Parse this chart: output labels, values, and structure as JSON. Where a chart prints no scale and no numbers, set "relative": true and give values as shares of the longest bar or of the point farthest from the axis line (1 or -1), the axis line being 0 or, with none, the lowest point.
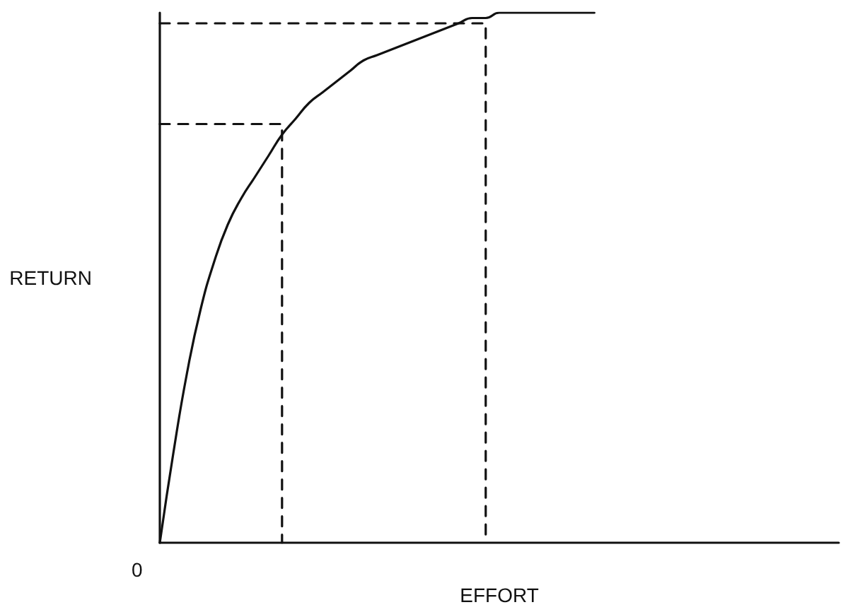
{
  "chart_data": {
    "type": "line",
    "relative": true,
    "xlabel": "EFFORT",
    "ylabel": "RETURN",
    "annotations": [
      "0"
    ],
    "marker": "none",
    "categories": [
      null,
      null,
      null,
      null,
      null,
      null,
      null,
      null,
      null,
      null,
      null,
      null,
      null,
      null,
      null,
      null,
      null,
      null,
      null,
      null,
      null,
      null,
      null,
      null,
      null,
      null,
      null,
      null,
      null,
      null,
      null,
      null,
      null,
      null,
      null,
      null,
      null,
      null,
      null,
      null,
      null,
      null,
      null,
      null,
      null,
      null,
      null,
      null,
      null,
      null,
      null
    ],
    "series": [
      {
        "color": "#111111",
        "values": [
          0,
          0.17,
          0.32,
          0.44,
          0.53,
          0.6,
          0.65,
          0.69,
          0.73,
          0.77,
          0.8,
          0.83,
          0.85,
          0.87,
          0.89,
          0.91,
          0.92,
          0.93,
          0.94,
          0.95,
          0.96,
          0.97,
          0.98,
          0.99,
          0.99,
          1,
          1,
          1,
          1,
          1,
          1,
          1,
          1,
          null,
          null,
          null,
          null,
          null,
          null,
          null,
          null,
          null,
          null,
          null,
          null,
          null,
          null,
          null,
          null,
          null,
          null
        ]
      },
      {
        "type": "step",
        "color": "#111111",
        "line_style": "dashed",
        "values": [
          0.79,
          0.79,
          0.79,
          0.79,
          0.79,
          0.79,
          0.79,
          0.79,
          0.79,
          0,
          null,
          null,
          null,
          null,
          null,
          null,
          null,
          null,
          null,
          null,
          null,
          null,
          null,
          null,
          null,
          null,
          null,
          null,
          null,
          null,
          null,
          null,
          null,
          null,
          null,
          null,
          null,
          null,
          null,
          null,
          null,
          null,
          null,
          null,
          null,
          null,
          null,
          null,
          null,
          null,
          null
        ]
      },
      {
        "type": "step",
        "color": "#111111",
        "line_style": "dashed",
        "values": [
          0.98,
          0.98,
          0.98,
          0.98,
          0.98,
          0.98,
          0.98,
          0.98,
          0.98,
          0.98,
          0.98,
          0.98,
          0.98,
          0.98,
          0.98,
          0.98,
          0.98,
          0.98,
          0.98,
          0.98,
          0.98,
          0.98,
          0.98,
          0.98,
          0,
          null,
          null,
          null,
          null,
          null,
          null,
          null,
          null,
          null,
          null,
          null,
          null,
          null,
          null,
          null,
          null,
          null,
          null,
          null,
          null,
          null,
          null,
          null,
          null,
          null,
          null
        ]
      }
    ]
  }
}
